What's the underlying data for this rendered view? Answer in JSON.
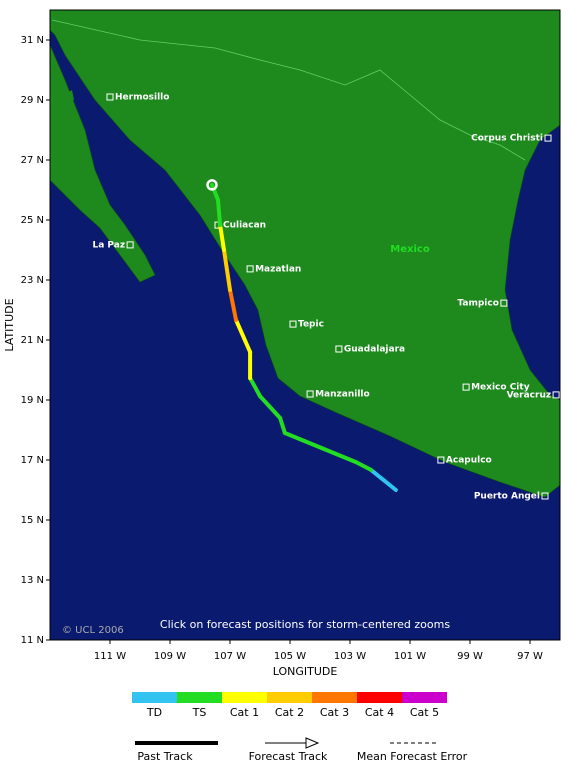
{
  "map": {
    "y_axis_label": "LATITUDE",
    "x_axis_label": "LONGITUDE",
    "lat_range": [
      11,
      32
    ],
    "lon_range": [
      -113,
      -96
    ],
    "lat_ticks": [
      {
        "value": 31,
        "label": "31 N"
      },
      {
        "value": 29,
        "label": "29 N"
      },
      {
        "value": 27,
        "label": "27 N"
      },
      {
        "value": 25,
        "label": "25 N"
      },
      {
        "value": 23,
        "label": "23 N"
      },
      {
        "value": 21,
        "label": "21 N"
      },
      {
        "value": 19,
        "label": "19 N"
      },
      {
        "value": 17,
        "label": "17 N"
      },
      {
        "value": 15,
        "label": "15 N"
      },
      {
        "value": 13,
        "label": "13 N"
      },
      {
        "value": 11,
        "label": "11 N"
      }
    ],
    "lon_ticks": [
      {
        "value": -111,
        "label": "111 W"
      },
      {
        "value": -109,
        "label": "109 W"
      },
      {
        "value": -107,
        "label": "107 W"
      },
      {
        "value": -105,
        "label": "105 W"
      },
      {
        "value": -103,
        "label": "103 W"
      },
      {
        "value": -101,
        "label": "101 W"
      },
      {
        "value": -99,
        "label": "99 W"
      },
      {
        "value": -97,
        "label": "97 W"
      }
    ],
    "region_label": "Mexico",
    "copyright": "© UCL 2006",
    "note": "Click on forecast positions for storm-centered zooms",
    "cities": [
      {
        "name": "Hermosillo",
        "lat": 29.1,
        "lon": -111.0
      },
      {
        "name": "Corpus Christi",
        "lat": 27.73,
        "lon": -96.4
      },
      {
        "name": "Culiacan",
        "lat": 24.83,
        "lon": -107.4
      },
      {
        "name": "La Paz",
        "lat": 24.17,
        "lon": -110.33
      },
      {
        "name": "Mazatlan",
        "lat": 23.37,
        "lon": -106.33
      },
      {
        "name": "Tampico",
        "lat": 22.23,
        "lon": -97.87
      },
      {
        "name": "Tepic",
        "lat": 21.53,
        "lon": -104.9
      },
      {
        "name": "Guadalajara",
        "lat": 20.7,
        "lon": -103.37
      },
      {
        "name": "Manzanillo",
        "lat": 19.2,
        "lon": -104.33
      },
      {
        "name": "Mexico City",
        "lat": 19.43,
        "lon": -99.13
      },
      {
        "name": "Veracruz",
        "lat": 19.17,
        "lon": -96.13
      },
      {
        "name": "Acapulco",
        "lat": 17.0,
        "lon": -99.97
      },
      {
        "name": "Puerto Angel",
        "lat": 15.8,
        "lon": -96.5
      }
    ],
    "track": [
      {
        "lat": 16.0,
        "lon": -101.47,
        "category": "TD"
      },
      {
        "lat": 16.67,
        "lon": -102.3,
        "category": "TD"
      },
      {
        "lat": 16.93,
        "lon": -102.8,
        "category": "TS"
      },
      {
        "lat": 17.9,
        "lon": -105.17,
        "category": "TS"
      },
      {
        "lat": 18.4,
        "lon": -105.33,
        "category": "TS"
      },
      {
        "lat": 19.13,
        "lon": -106.0,
        "category": "TS"
      },
      {
        "lat": 19.73,
        "lon": -106.33,
        "category": "TS"
      },
      {
        "lat": 20.6,
        "lon": -106.33,
        "category": "Cat 1"
      },
      {
        "lat": 21.67,
        "lon": -106.8,
        "category": "Cat 1"
      },
      {
        "lat": 22.67,
        "lon": -107.0,
        "category": "Cat 3"
      },
      {
        "lat": 24.0,
        "lon": -107.2,
        "category": "Cat 2"
      },
      {
        "lat": 24.83,
        "lon": -107.33,
        "category": "Cat 1"
      },
      {
        "lat": 25.67,
        "lon": -107.4,
        "category": "TS"
      },
      {
        "lat": 26.17,
        "lon": -107.6,
        "category": "TS"
      }
    ]
  },
  "legend": {
    "categories": [
      {
        "name": "TD",
        "color": "#33c3f0"
      },
      {
        "name": "TS",
        "color": "#22dd22"
      },
      {
        "name": "Cat 1",
        "color": "#ffff00"
      },
      {
        "name": "Cat 2",
        "color": "#ffcc00"
      },
      {
        "name": "Cat 3",
        "color": "#ff7700"
      },
      {
        "name": "Cat 4",
        "color": "#ff0000"
      },
      {
        "name": "Cat 5",
        "color": "#cc00cc"
      }
    ],
    "lines": [
      "Past Track",
      "Forecast Track",
      "Mean Forecast Error"
    ]
  }
}
